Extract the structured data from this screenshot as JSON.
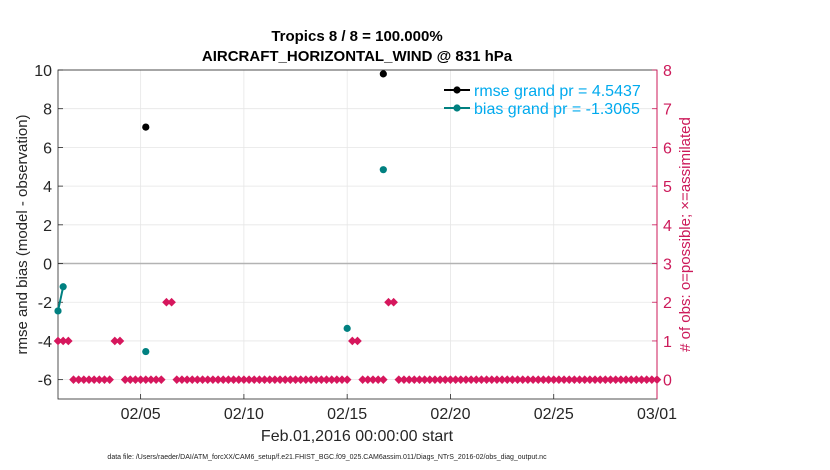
{
  "title_line1": "Tropics 8 / 8 = 100.000%",
  "title_line2": "AIRCRAFT_HORIZONTAL_WIND @ 831 hPa",
  "xlabel": "Feb.01,2016 00:00:00 start",
  "footer": "data file: /Users/raeder/DAI/ATM_forcXX/CAM6_setup/f.e21.FHIST_BGC.f09_025.CAM6assim.011/Diags_NTrS_2016-02/obs_diag_output.nc",
  "colors": {
    "rmse": "#000000",
    "bias": "#008080",
    "counts": "#d6175d",
    "right_axis": "#cc1a5a",
    "legend_text": "#00aaee",
    "zero_line": "#b3b3b3",
    "grid": "#e6e6e6"
  },
  "chart_data": {
    "type": "line",
    "xlabel": "Feb.01,2016 00:00:00 start",
    "ylabel": "rmse and bias (model - observation)",
    "y2label": "# of obs: o=possible; ×=assimilated",
    "xlim": [
      "2016-02-01",
      "2016-03-01"
    ],
    "ylim": [
      -7,
      10
    ],
    "y2lim": [
      -0.5,
      8
    ],
    "grid": true,
    "legend_position": "top-right",
    "x_ticks": [
      "2016-02-05",
      "2016-02-10",
      "2016-02-15",
      "2016-02-20",
      "2016-02-25",
      "2016-03-01"
    ],
    "x_tick_labels": [
      "02/05",
      "02/10",
      "02/15",
      "02/20",
      "02/25",
      "03/01"
    ],
    "y_ticks": [
      -6,
      -4,
      -2,
      0,
      2,
      4,
      6,
      8,
      10
    ],
    "y2_ticks": [
      0,
      1,
      2,
      3,
      4,
      5,
      6,
      7,
      8
    ],
    "series": [
      {
        "name": "rmse grand pr = 4.5437",
        "axis": "left",
        "x": [
          "2016-02-05T06:00",
          "2016-02-16T18:00"
        ],
        "y": [
          7.05,
          9.8
        ]
      },
      {
        "name": "bias grand pr = -1.3065",
        "axis": "left",
        "x": [
          "2016-02-01T00:00",
          "2016-02-01T06:00",
          "2016-02-05T06:00",
          "2016-02-15T00:00",
          "2016-02-16T18:00"
        ],
        "y": [
          -2.45,
          -1.2,
          -4.55,
          -3.35,
          4.85
        ]
      },
      {
        "axis": "right",
        "x_start": "2016-02-01T00:00",
        "x_step_hours": 6,
        "counts": [
          1,
          1,
          1,
          0,
          0,
          0,
          0,
          0,
          0,
          0,
          0,
          1,
          1,
          0,
          0,
          0,
          0,
          0,
          0,
          0,
          0,
          2,
          2,
          0,
          0,
          0,
          0,
          0,
          0,
          0,
          0,
          0,
          0,
          0,
          0,
          0,
          0,
          0,
          0,
          0,
          0,
          0,
          0,
          0,
          0,
          0,
          0,
          0,
          0,
          0,
          0,
          0,
          0,
          0,
          0,
          0,
          0,
          1,
          1,
          0,
          0,
          0,
          0,
          0,
          2,
          2,
          0,
          0,
          0,
          0,
          0,
          0,
          0,
          0,
          0,
          0,
          0,
          0,
          0,
          0,
          0,
          0,
          0,
          0,
          0,
          0,
          0,
          0,
          0,
          0,
          0,
          0,
          0,
          0,
          0,
          0,
          0,
          0,
          0,
          0,
          0,
          0,
          0,
          0,
          0,
          0,
          0,
          0,
          0,
          0,
          0,
          0,
          0,
          0,
          0,
          0,
          0
        ]
      }
    ]
  }
}
